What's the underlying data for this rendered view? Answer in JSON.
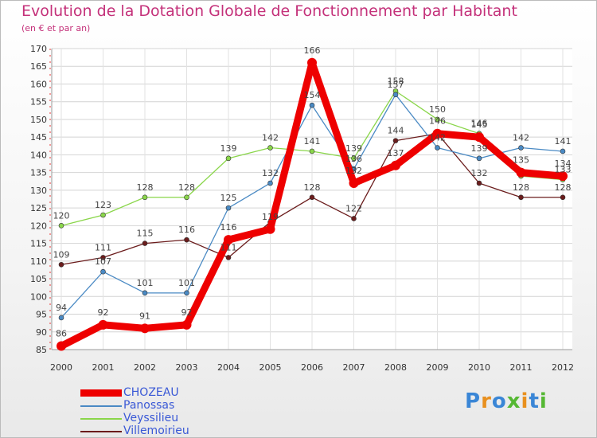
{
  "chart_data": {
    "type": "line",
    "title": "Evolution de la Dotation Globale de Fonctionnement par Habitant",
    "subtitle": "(en € et par an)",
    "xlabel": "",
    "ylabel": "",
    "ylim": [
      85,
      170
    ],
    "ytick_step": 5,
    "grid": true,
    "legend_position": "bottom-left",
    "x": [
      "2000",
      "2001",
      "2002",
      "2003",
      "2004",
      "2005",
      "2006",
      "2007",
      "2008",
      "2009",
      "2010",
      "2011",
      "2012"
    ],
    "series": [
      {
        "name": "Villemoirieu",
        "color": "#6b1c1c",
        "values": [
          109,
          111,
          115,
          116,
          111,
          121,
          128,
          122,
          144,
          146,
          132,
          128,
          128
        ],
        "labels": [
          "109",
          "111",
          "115",
          "116",
          "111",
          "",
          "128",
          "122",
          "144",
          "",
          "132",
          "128",
          "128"
        ]
      },
      {
        "name": "Veyssilieu",
        "color": "#8ad64a",
        "values": [
          120,
          123,
          128,
          128,
          139,
          142,
          141,
          139,
          158,
          150,
          146,
          134,
          133
        ],
        "labels": [
          "120",
          "123",
          "128",
          "128",
          "139",
          "142",
          "141",
          "139",
          "158",
          "150",
          "146",
          "",
          "133"
        ]
      },
      {
        "name": "Panossas",
        "color": "#4a8ac4",
        "values": [
          94,
          107,
          101,
          101,
          125,
          132,
          154,
          136,
          157,
          142,
          139,
          142,
          141
        ],
        "labels": [
          "94",
          "107",
          "101",
          "101",
          "125",
          "132",
          "154",
          "136",
          "157",
          "142",
          "139",
          "142",
          "141"
        ]
      },
      {
        "name": "CHOZEAU",
        "color": "#ee0000",
        "values": [
          86,
          92,
          91,
          92,
          116,
          119,
          166,
          132,
          137,
          146,
          145,
          135,
          134
        ],
        "labels": [
          "86",
          "92",
          "91",
          "92",
          "116",
          "119",
          "166",
          "132",
          "137",
          "146",
          "145",
          "135",
          "134"
        ]
      }
    ]
  },
  "legend": {
    "items": [
      {
        "label": "CHOZEAU",
        "color": "#ee0000"
      },
      {
        "label": "Panossas",
        "color": "#4a8ac4"
      },
      {
        "label": "Veyssilieu",
        "color": "#8ad64a"
      },
      {
        "label": "Villemoirieu",
        "color": "#6b1c1c"
      }
    ]
  },
  "logo": {
    "text": "Proxiti"
  }
}
